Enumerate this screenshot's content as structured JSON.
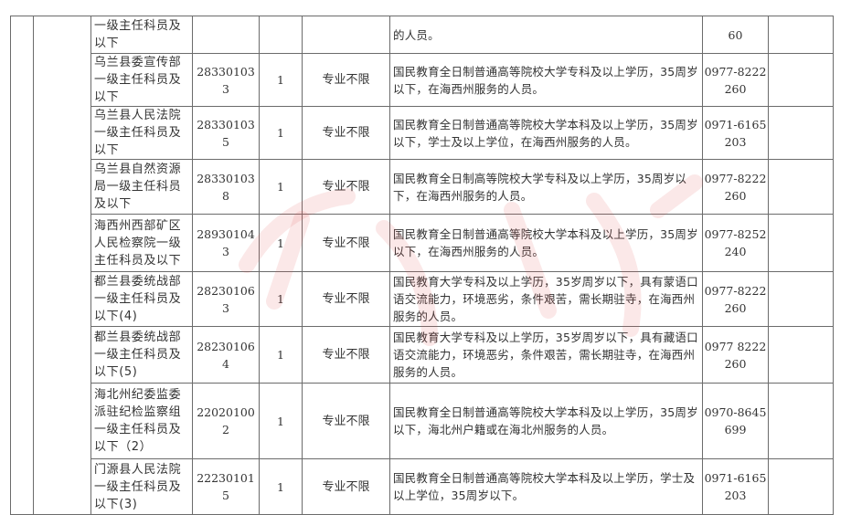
{
  "table": {
    "rows": [
      {
        "position": "一级主任科员及以下",
        "code": "",
        "count": "",
        "major": "",
        "requirements": "的人员。",
        "phone": "60"
      },
      {
        "position": "乌兰县委宣传部一级主任科员及以下",
        "code": "283301033",
        "count": "1",
        "major": "专业不限",
        "requirements": "国民教育全日制普通高等院校大学专科及以上学历，35周岁以下，在海西州服务的人员。",
        "phone": "0977-8222260"
      },
      {
        "position": "乌兰县人民法院一级主任科员及以下",
        "code": "283301035",
        "count": "1",
        "major": "专业不限",
        "requirements": "国民教育全日制普通高等院校大学本科及以上学历，35周岁以下，学士及以上学位，在海西州服务的人员。",
        "phone": "0971-6165203"
      },
      {
        "position": "乌兰县自然资源局一级主任科员及以下",
        "code": "283301038",
        "count": "1",
        "major": "专业不限",
        "requirements": "国民教育全日制高等院校大学专科及以上学历，35周岁以下，在海西州服务的人员。",
        "phone": "0977-8222260"
      },
      {
        "position": "海西州西部矿区人民检察院一级主任科员及以下",
        "code": "289301043",
        "count": "1",
        "major": "专业不限",
        "requirements": "国民教育全日制普通高等院校大学本科及以上学历，35周岁以下，在海西州服务的人员。",
        "phone": "0977-8252240"
      },
      {
        "position": "都兰县委统战部一级主任科员及以下(4)",
        "code": "282301063",
        "count": "1",
        "major": "专业不限",
        "requirements": "国民教育大学专科及以上学历，35岁周岁以下，具有蒙语口语交流能力，环境恶劣，条件艰苦，需长期驻寺，在海西州服务的人员。",
        "phone": "0977-8222260"
      },
      {
        "position": "都兰县委统战部一级主任科员及以下(5)",
        "code": "282301064",
        "count": "1",
        "major": "专业不限",
        "requirements": "国民教育大学专科及以上学历，35岁周岁以下，具有藏语口语交流能力，环境恶劣，条件艰苦，需长期驻寺，在海西州服务的人员。",
        "phone": "0977 8222260"
      },
      {
        "position": "海北州纪委监委派驻纪检监察组一级主任科员及以下（2）",
        "code": "220201002",
        "count": "1",
        "major": "专业不限",
        "requirements": "国民教育全日制普通高等院校大学本科及以上学历，35周岁以下，海北州户籍或在海北州服务的人员。",
        "phone": "0970-8645699"
      },
      {
        "position": "门源县人民法院一级主任科员及以下(3)",
        "code": "222301015",
        "count": "1",
        "major": "专业不限",
        "requirements": "国民教育全日制普通高等院校大学本科及以上学历，学士及以上学位，35周岁以下。",
        "phone": "0971-6165203"
      }
    ]
  },
  "watermark_color": "#e8a0a0"
}
